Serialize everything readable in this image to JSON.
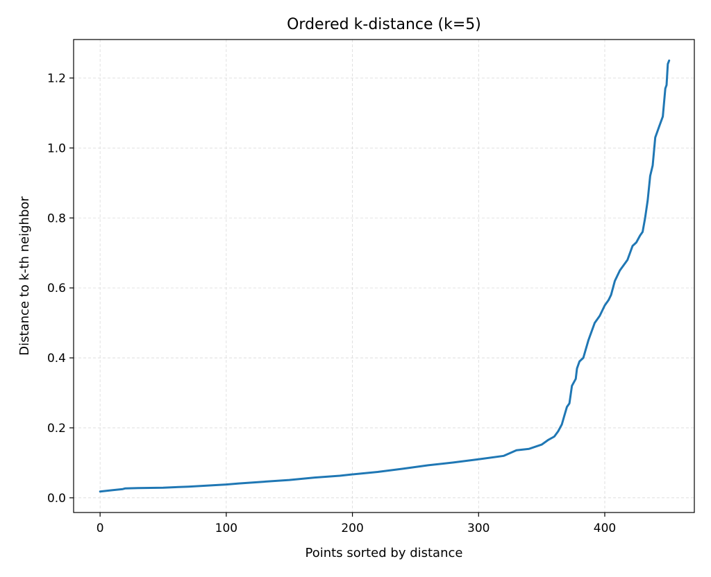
{
  "chart_data": {
    "type": "line",
    "title": "Ordered k-distance (k=5)",
    "xlabel": "Points sorted by distance",
    "ylabel": "Distance to k-th neighbor",
    "xlim": [
      -21,
      471
    ],
    "ylim": [
      -0.042,
      1.31
    ],
    "xticks": [
      0,
      100,
      200,
      300,
      400
    ],
    "xtick_labels": [
      "0",
      "100",
      "200",
      "300",
      "400"
    ],
    "yticks": [
      0.0,
      0.2,
      0.4,
      0.6,
      0.8,
      1.0,
      1.2
    ],
    "ytick_labels": [
      "0.0",
      "0.2",
      "0.4",
      "0.6",
      "0.8",
      "1.0",
      "1.2"
    ],
    "grid": true,
    "series": [
      {
        "color": "#1f77b4",
        "x": [
          0,
          5,
          10,
          18,
          20,
          30,
          50,
          70,
          100,
          110,
          130,
          150,
          170,
          190,
          200,
          220,
          240,
          260,
          280,
          300,
          320,
          330,
          340,
          350,
          355,
          360,
          363,
          366,
          368,
          370,
          372,
          374,
          377,
          378,
          380,
          383,
          387,
          388,
          392,
          396,
          400,
          403,
          405,
          408,
          412,
          414,
          418,
          422,
          425,
          428,
          430,
          432,
          434,
          436,
          438,
          440,
          443,
          446,
          448,
          449,
          450,
          451
        ],
        "y": [
          0.018,
          0.02,
          0.022,
          0.025,
          0.027,
          0.028,
          0.029,
          0.032,
          0.038,
          0.041,
          0.046,
          0.051,
          0.058,
          0.063,
          0.067,
          0.074,
          0.083,
          0.093,
          0.101,
          0.11,
          0.12,
          0.136,
          0.14,
          0.152,
          0.165,
          0.175,
          0.19,
          0.21,
          0.235,
          0.26,
          0.27,
          0.32,
          0.34,
          0.37,
          0.39,
          0.4,
          0.45,
          0.46,
          0.5,
          0.52,
          0.55,
          0.565,
          0.58,
          0.62,
          0.65,
          0.66,
          0.68,
          0.72,
          0.73,
          0.75,
          0.76,
          0.8,
          0.85,
          0.92,
          0.95,
          1.03,
          1.06,
          1.09,
          1.17,
          1.18,
          1.24,
          1.25
        ]
      }
    ]
  }
}
